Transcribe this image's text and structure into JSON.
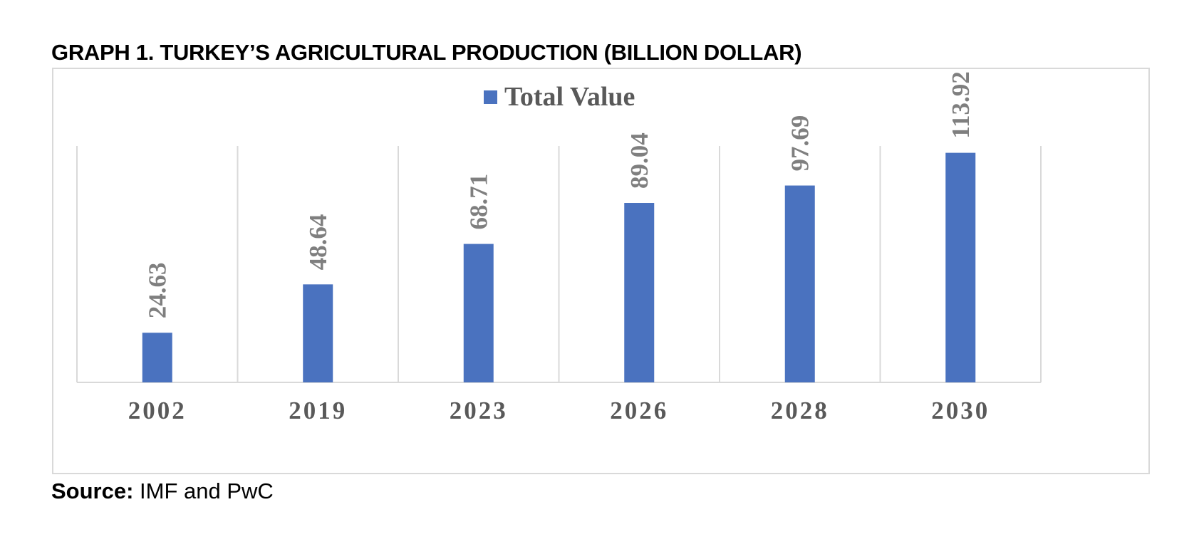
{
  "title": "GRAPH 1. TURKEY’S AGRICULTURAL PRODUCTION (BILLION DOLLAR)",
  "source": {
    "label": "Source:",
    "text": "IMF and PwC"
  },
  "colors": {
    "bar": "#4a72bf",
    "grid": "#d9d9d9"
  },
  "chart_data": {
    "type": "bar",
    "title": "",
    "xlabel": "",
    "ylabel": "",
    "legend": {
      "entries": [
        "Total Value"
      ],
      "placement": "top"
    },
    "grid": "vertical separators between categories",
    "categories": [
      "2002",
      "2019",
      "2023",
      "2026",
      "2028",
      "2030"
    ],
    "series": [
      {
        "name": "Total Value",
        "values": [
          24.63,
          48.64,
          68.71,
          89.04,
          97.69,
          113.92
        ],
        "data_labels": [
          "24.63",
          "48.64",
          "68.71",
          "89.04",
          "97.69",
          "113.92"
        ]
      }
    ],
    "ylim": [
      0,
      120
    ]
  }
}
